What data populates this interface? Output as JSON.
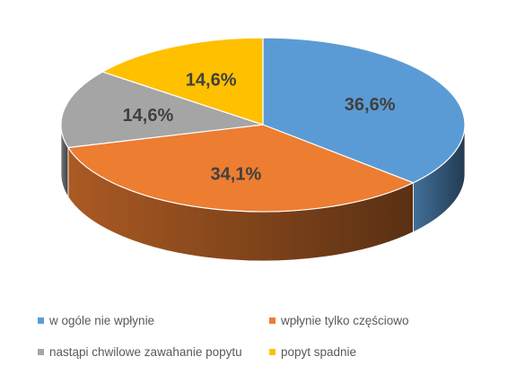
{
  "chart_data": {
    "type": "pie",
    "title": "",
    "categories": [
      "w ogóle nie wpłynie",
      "wpłynie tylko częściowo",
      "nastąpi chwilowe zawahanie popytu",
      "popyt spadnie"
    ],
    "values": [
      36.6,
      34.1,
      14.6,
      14.6
    ],
    "value_labels": [
      "36,6%",
      "34,1%",
      "14,6%",
      "14,6%"
    ],
    "colors": [
      "#5B9BD5",
      "#ED7D31",
      "#A5A5A5",
      "#FFC000"
    ],
    "three_d": true,
    "legend_position": "bottom"
  }
}
